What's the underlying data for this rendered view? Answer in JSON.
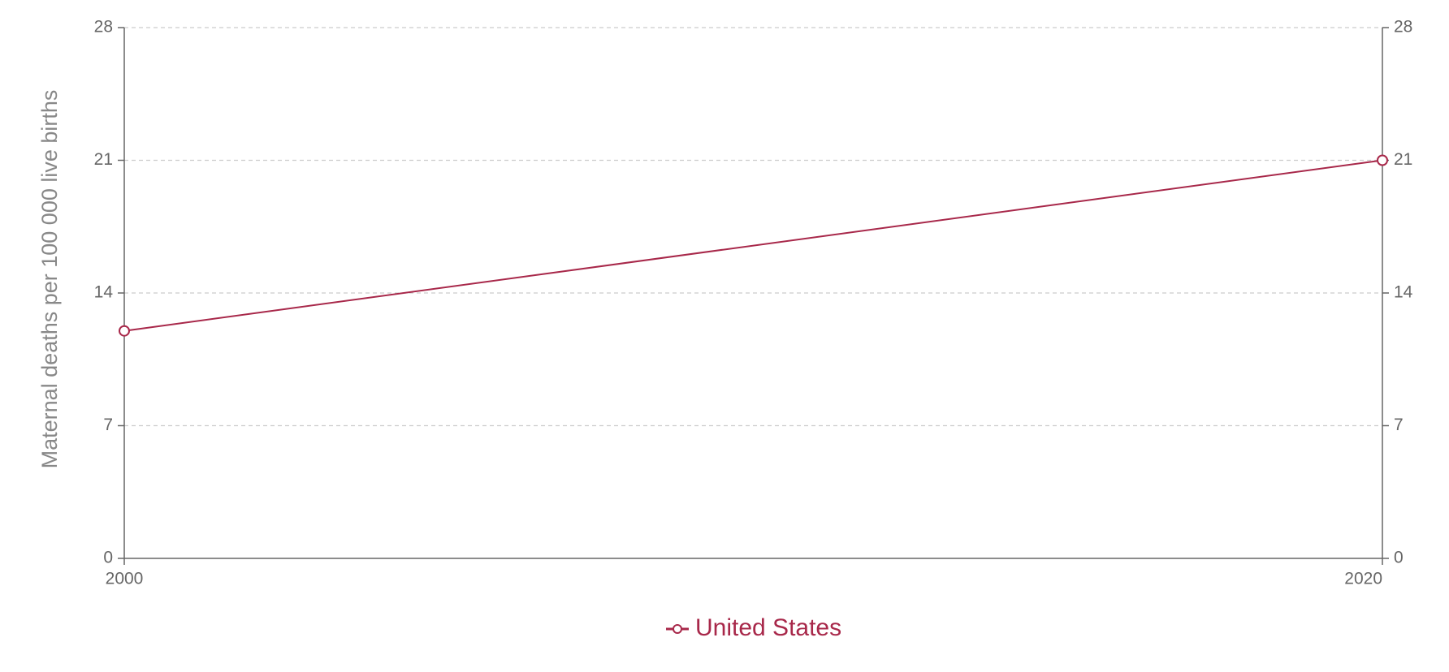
{
  "chart_data": {
    "type": "line",
    "y_label": "Maternal deaths per 100 000 live births",
    "x": [
      2000,
      2020
    ],
    "series": [
      {
        "name": "United States",
        "color": "#a8284a",
        "values": [
          12,
          21
        ]
      }
    ],
    "xlim": [
      2000,
      2020
    ],
    "xticks": [
      2000,
      2020
    ],
    "ylim": [
      0,
      28
    ],
    "yticks": [
      0,
      7,
      14,
      21,
      28
    ],
    "y2lim": [
      0,
      28
    ],
    "y2ticks": [
      0,
      7,
      14,
      21,
      28
    ],
    "grid": true,
    "legend": "bottom"
  }
}
